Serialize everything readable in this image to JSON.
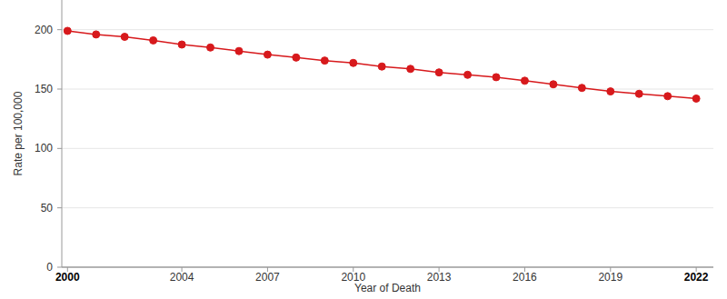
{
  "chart_data": {
    "type": "line",
    "x": [
      2000,
      2001,
      2002,
      2003,
      2004,
      2005,
      2006,
      2007,
      2008,
      2009,
      2010,
      2011,
      2012,
      2013,
      2014,
      2015,
      2016,
      2017,
      2018,
      2019,
      2020,
      2021,
      2022
    ],
    "values": [
      199,
      196,
      194,
      191,
      187.5,
      185,
      182,
      179,
      176.5,
      174,
      172,
      169,
      167,
      164,
      162,
      160,
      157,
      154,
      151,
      148,
      146,
      144,
      142
    ],
    "color": "#d7191c",
    "marker": "circle",
    "x_label": "Year of Death",
    "y_label": "Rate per 100,000",
    "xlim": [
      1999.8,
      2022.6
    ],
    "xticks": [
      2000,
      2004,
      2007,
      2010,
      2013,
      2016,
      2019,
      2022
    ],
    "ylim": [
      0,
      225
    ],
    "yticks": [
      0,
      50,
      100,
      150,
      200
    ],
    "grid": true
  }
}
